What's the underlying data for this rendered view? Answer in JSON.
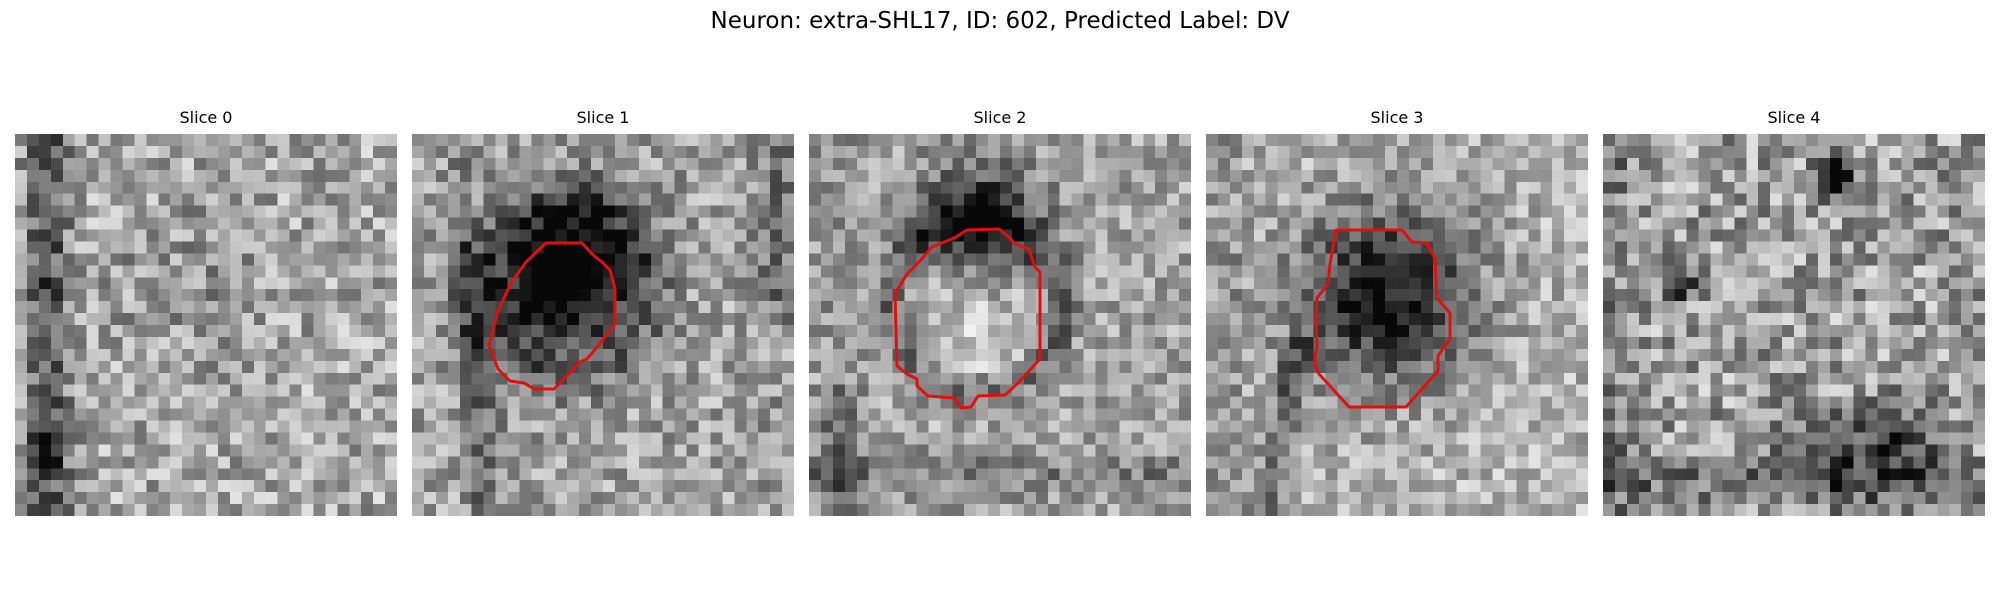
{
  "figure": {
    "title": "Neuron: extra-SHL17, ID: 602, Predicted Label: DV"
  },
  "panels": [
    {
      "title": "Slice 0",
      "has_contour": false
    },
    {
      "title": "Slice 1",
      "has_contour": true
    },
    {
      "title": "Slice 2",
      "has_contour": true
    },
    {
      "title": "Slice 3",
      "has_contour": true
    },
    {
      "title": "Slice 4",
      "has_contour": false
    }
  ],
  "colors": {
    "contour": "#e01010",
    "background": "#ffffff"
  }
}
